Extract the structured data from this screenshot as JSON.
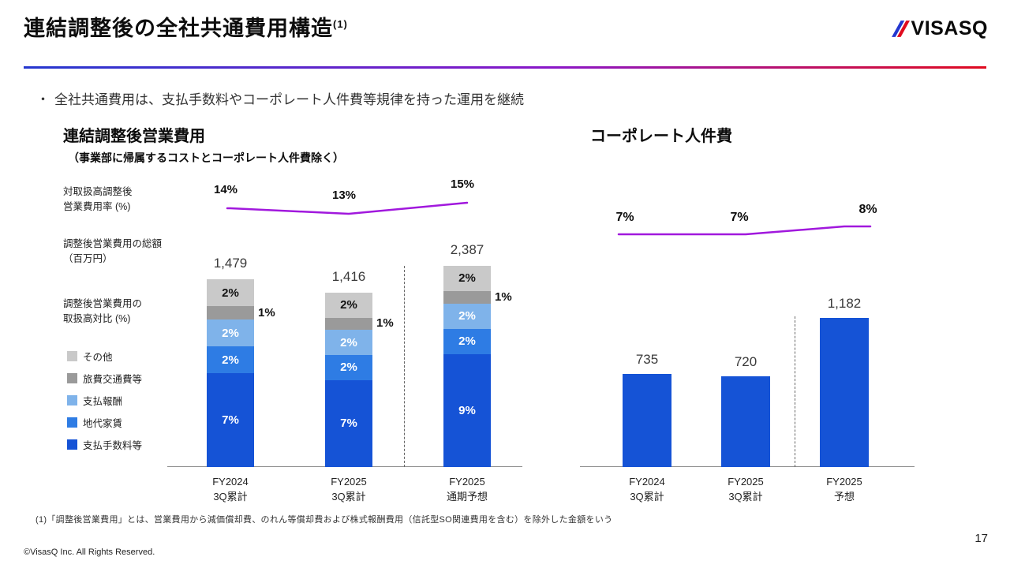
{
  "colors": {
    "brand_blue": "#2437cf",
    "brand_purple": "#8a16c8",
    "brand_red": "#e00a1e",
    "line_purple": "#a118dd",
    "bar_blue": "#1553d6",
    "axis_gray": "#8f8f8f"
  },
  "header": {
    "title": "連結調整後の全社共通費用構造",
    "title_note": "(1)",
    "logo_text": "VISASQ"
  },
  "bullet": {
    "marker": "・",
    "text": "全社共通費用は、支払手数料やコーポレート人件費等規律を持った運用を継続"
  },
  "left_chart_labels": {
    "row1": "対取扱高調整後\n営業費用率 (%)",
    "row2": "調整後営業費用の総額\n（百万円）",
    "row3": "調整後営業費用の\n取扱高対比 (%)"
  },
  "chart_data": [
    {
      "type": "bar",
      "subtype": "stacked-bar-with-line",
      "title": "連結調整後営業費用",
      "subtitle": "（事業部に帰属するコストとコーポレート人件費除く）",
      "categories": [
        "FY2024\n3Q累計",
        "FY2025\n3Q累計",
        "FY2025\n通期予想"
      ],
      "line_series": {
        "name": "対取扱高調整後営業費用率 (%)",
        "values": [
          14,
          13,
          15
        ],
        "unit": "%",
        "color": "#a118dd"
      },
      "totals": {
        "name": "調整後営業費用の総額（百万円）",
        "values": [
          1479,
          1416,
          2387
        ],
        "labels": [
          "1,479",
          "1,416",
          "2,387"
        ]
      },
      "stack_unit_label": "調整後営業費用の取扱高対比 (%)",
      "segments": [
        {
          "name": "支払手数料等",
          "color": "#1553d6",
          "values": [
            7,
            7,
            9
          ],
          "label_style": "inside-white"
        },
        {
          "name": "地代家賃",
          "color": "#2e7ce4",
          "values": [
            2,
            2,
            2
          ],
          "label_style": "inside-white"
        },
        {
          "name": "支払報酬",
          "color": "#7fb3ea",
          "values": [
            2,
            2,
            2
          ],
          "label_style": "inside-white"
        },
        {
          "name": "旅費交通費等",
          "color": "#9a9a9a",
          "values": [
            1,
            1,
            1
          ],
          "label_style": "outside-right"
        },
        {
          "name": "その他",
          "color": "#c9c9c9",
          "values": [
            2,
            2,
            2
          ],
          "label_style": "inside-dark"
        }
      ],
      "grid": false,
      "legend_position": "left"
    },
    {
      "type": "bar",
      "subtype": "bar-with-line",
      "title": "コーポレート人件費",
      "categories": [
        "FY2024\n3Q累計",
        "FY2025\n3Q累計",
        "FY2025\n予想"
      ],
      "line_series": {
        "values": [
          7,
          7,
          8
        ],
        "unit": "%",
        "color": "#a118dd"
      },
      "bars": {
        "values": [
          735,
          720,
          1182
        ],
        "labels": [
          "735",
          "720",
          "1,182"
        ],
        "color": "#1553d6"
      },
      "grid": false
    }
  ],
  "footnote": "(1)「調整後営業費用」とは、営業費用から減価償却費、のれん等償却費および株式報酬費用（信託型SO関連費用を含む）を除外した金額をいう",
  "footer": {
    "copyright": "©VisasQ Inc. All Rights Reserved.",
    "page_number": "17"
  }
}
